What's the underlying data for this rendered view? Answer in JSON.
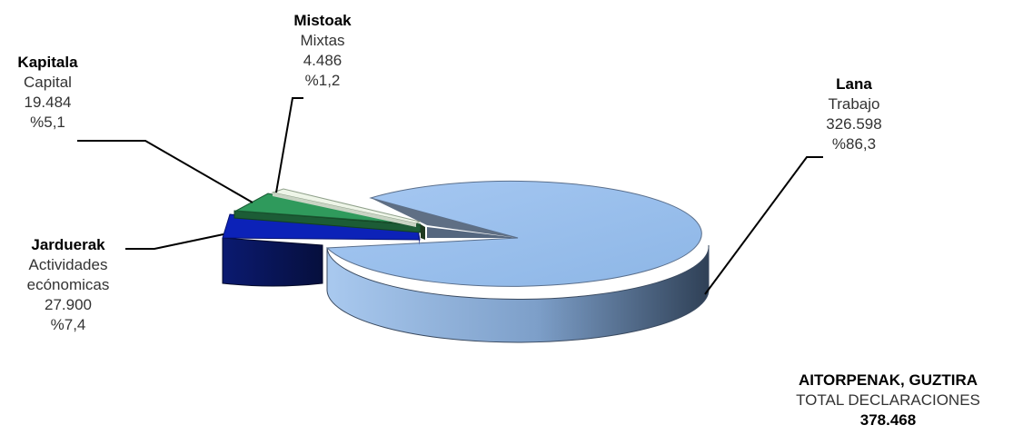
{
  "chart_data": {
    "type": "pie",
    "style": "3d-exploded",
    "slices": [
      {
        "label_eu": "Lana",
        "label_es": "Trabajo",
        "value": 326598,
        "value_text": "326.598",
        "percent": 86.3,
        "percent_text": "%86,3",
        "color": "#8fb8e8"
      },
      {
        "label_eu": "Jarduerak",
        "label_es": "Actividades",
        "label_es2": "ecónomicas",
        "value": 27900,
        "value_text": "27.900",
        "percent": 7.4,
        "percent_text": "%7,4",
        "color": "#0a1e9c"
      },
      {
        "label_eu": "Kapitala",
        "label_es": "Capital",
        "value": 19484,
        "value_text": "19.484",
        "percent": 5.1,
        "percent_text": "%5,1",
        "color": "#2e8b57"
      },
      {
        "label_eu": "Mistoak",
        "label_es": "Mixtas",
        "value": 4486,
        "value_text": "4.486",
        "percent": 1.2,
        "percent_text": "%1,2",
        "color": "#e8f0e0"
      }
    ],
    "total": {
      "title_eu": "AITORPENAK, GUZTIRA",
      "title_es": "TOTAL DECLARACIONES",
      "value": 378468,
      "value_text": "378.468"
    }
  }
}
